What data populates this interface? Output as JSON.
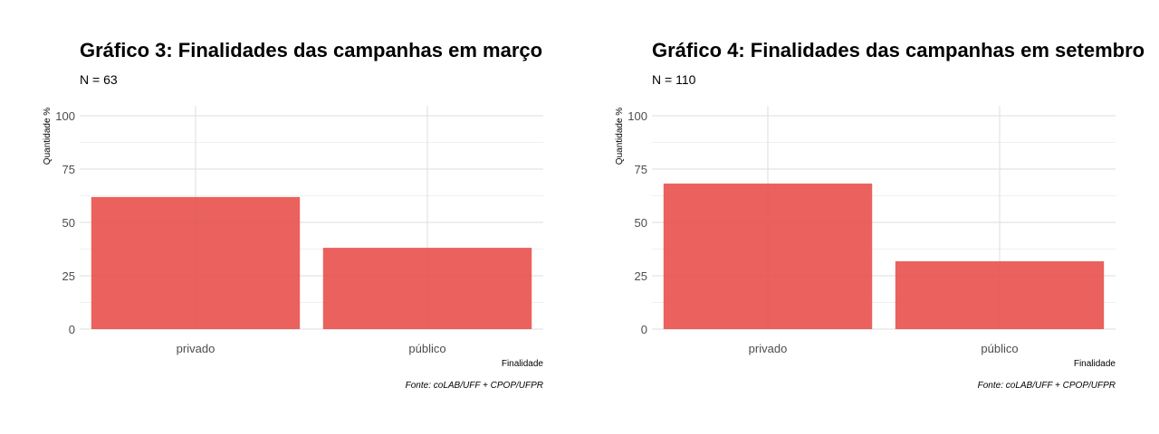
{
  "chart_data": [
    {
      "type": "bar",
      "title": "Gráfico 3: Finalidades das campanhas em março",
      "subtitle": "N = 63",
      "categories": [
        "privado",
        "público"
      ],
      "values": [
        61.9,
        38.1
      ],
      "xlabel": "Finalidade",
      "ylabel": "Quantidade %",
      "ylim": [
        0,
        100
      ],
      "yticks": [
        0,
        25,
        50,
        75,
        100
      ],
      "caption": "Fonte: coLAB/UFF + CPOP/UFPR",
      "grid": true,
      "bar_color": "#E8504B"
    },
    {
      "type": "bar",
      "title": "Gráfico 4: Finalidades das campanhas em setembro",
      "subtitle": "N = 110",
      "categories": [
        "privado",
        "público"
      ],
      "values": [
        68.2,
        31.8
      ],
      "xlabel": "Finalidade",
      "ylabel": "Quantidade %",
      "ylim": [
        0,
        100
      ],
      "yticks": [
        0,
        25,
        50,
        75,
        100
      ],
      "caption": "Fonte: coLAB/UFF + CPOP/UFPR",
      "grid": true,
      "bar_color": "#E8504B"
    }
  ]
}
